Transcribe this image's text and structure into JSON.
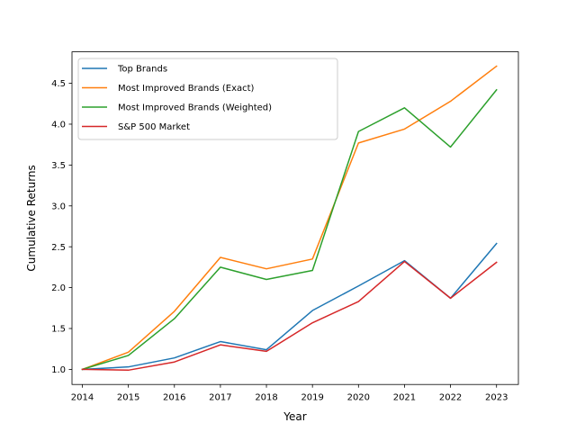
{
  "chart_data": {
    "type": "line",
    "title": "",
    "xlabel": "Year",
    "ylabel": "Cumulative Returns",
    "x": [
      2014,
      2015,
      2016,
      2017,
      2018,
      2019,
      2020,
      2021,
      2022,
      2023
    ],
    "xlim": [
      2013.775,
      2023.475
    ],
    "ylim": [
      0.815,
      4.885
    ],
    "yticks": [
      1.0,
      1.5,
      2.0,
      2.5,
      3.0,
      3.5,
      4.0,
      4.5
    ],
    "ytick_labels": [
      "1.0",
      "1.5",
      "2.0",
      "2.5",
      "3.0",
      "3.5",
      "4.0",
      "4.5"
    ],
    "xtick_labels": [
      "2014",
      "2015",
      "2016",
      "2017",
      "2018",
      "2019",
      "2020",
      "2021",
      "2022",
      "2023"
    ],
    "grid": false,
    "legend_position": "top-left",
    "series": [
      {
        "name": "Top Brands",
        "color": "#1f77b4",
        "values": [
          1.0,
          1.03,
          1.14,
          1.34,
          1.24,
          1.72,
          2.02,
          2.33,
          1.87,
          2.54
        ]
      },
      {
        "name": "Most Improved Brands (Exact)",
        "color": "#ff7f0e",
        "values": [
          1.0,
          1.21,
          1.71,
          2.37,
          2.23,
          2.35,
          3.77,
          3.94,
          4.28,
          4.71
        ]
      },
      {
        "name": "Most Improved Brands (Weighted)",
        "color": "#2ca02c",
        "values": [
          1.0,
          1.17,
          1.62,
          2.25,
          2.1,
          2.21,
          3.91,
          4.2,
          3.72,
          4.42
        ]
      },
      {
        "name": "S&P 500 Market",
        "color": "#d62728",
        "values": [
          1.0,
          0.99,
          1.09,
          1.3,
          1.22,
          1.57,
          1.83,
          2.32,
          1.87,
          2.31
        ]
      }
    ]
  }
}
